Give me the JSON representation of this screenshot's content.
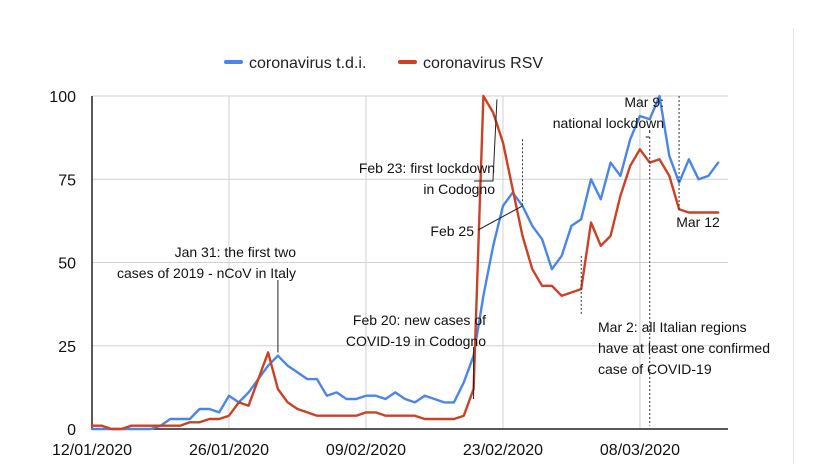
{
  "chart_data": {
    "type": "line",
    "legend_position": "top-center",
    "grid": true,
    "ylim": [
      0,
      100
    ],
    "yticks": [
      0,
      25,
      50,
      75,
      100
    ],
    "xlim": [
      "12/01/2020",
      "17/03/2020"
    ],
    "xtick_labels": [
      "12/01/2020",
      "26/01/2020",
      "09/02/2020",
      "23/02/2020",
      "08/03/2020"
    ],
    "x": [
      "12/01/2020",
      "13/01/2020",
      "14/01/2020",
      "15/01/2020",
      "16/01/2020",
      "17/01/2020",
      "18/01/2020",
      "19/01/2020",
      "20/01/2020",
      "21/01/2020",
      "22/01/2020",
      "23/01/2020",
      "24/01/2020",
      "25/01/2020",
      "26/01/2020",
      "27/01/2020",
      "28/01/2020",
      "29/01/2020",
      "30/01/2020",
      "31/01/2020",
      "01/02/2020",
      "02/02/2020",
      "03/02/2020",
      "04/02/2020",
      "05/02/2020",
      "06/02/2020",
      "07/02/2020",
      "08/02/2020",
      "09/02/2020",
      "10/02/2020",
      "11/02/2020",
      "12/02/2020",
      "13/02/2020",
      "14/02/2020",
      "15/02/2020",
      "16/02/2020",
      "17/02/2020",
      "18/02/2020",
      "19/02/2020",
      "20/02/2020",
      "21/02/2020",
      "22/02/2020",
      "23/02/2020",
      "24/02/2020",
      "25/02/2020",
      "26/02/2020",
      "27/02/2020",
      "28/02/2020",
      "29/02/2020",
      "01/03/2020",
      "02/03/2020",
      "03/03/2020",
      "04/03/2020",
      "05/03/2020",
      "06/03/2020",
      "07/03/2020",
      "08/03/2020",
      "09/03/2020",
      "10/03/2020",
      "11/03/2020",
      "12/03/2020",
      "13/03/2020",
      "14/03/2020",
      "15/03/2020",
      "16/03/2020"
    ],
    "series": [
      {
        "name": "coronavirus t.d.i.",
        "color": "#4a86e8",
        "values": [
          0,
          0,
          0,
          0,
          0,
          0,
          0,
          1,
          3,
          3,
          3,
          6,
          6,
          5,
          10,
          8,
          11,
          15,
          19,
          22,
          19,
          17,
          15,
          15,
          10,
          11,
          9,
          9,
          10,
          10,
          9,
          11,
          9,
          8,
          10,
          9,
          8,
          8,
          14,
          22,
          40,
          55,
          67,
          71,
          67,
          61,
          57,
          48,
          52,
          61,
          63,
          75,
          69,
          80,
          76,
          87,
          94,
          93,
          100,
          82,
          74,
          81,
          75,
          76,
          80
        ],
        "start_index": 0
      },
      {
        "name": "coronavirus RSV",
        "color": "#cc4125",
        "values": [
          1,
          1,
          0,
          0,
          1,
          1,
          1,
          1,
          1,
          1,
          2,
          2,
          3,
          3,
          4,
          8,
          7,
          15,
          23,
          12,
          8,
          6,
          5,
          4,
          4,
          4,
          4,
          4,
          5,
          5,
          4,
          4,
          4,
          4,
          3,
          3,
          3,
          3,
          4,
          12,
          100,
          95,
          86,
          72,
          58,
          48,
          43,
          43,
          40,
          41,
          42,
          62,
          55,
          58,
          70,
          79,
          84,
          80,
          81,
          76,
          66,
          65,
          65,
          65,
          65
        ],
        "start_index": 0
      }
    ],
    "annotations": [
      {
        "lines": [
          "Jan 31: the first two",
          "cases of 2019 - nCoV in Italy"
        ],
        "date": "31/01/2020"
      },
      {
        "lines": [
          "Feb 20: new cases of",
          "COVID-19 in Codogno"
        ],
        "date": "20/02/2020"
      },
      {
        "lines": [
          "Feb 23: first lockdown",
          "in Codogno"
        ],
        "date": "23/02/2020"
      },
      {
        "lines": [
          "Feb 25"
        ],
        "date": "25/02/2020"
      },
      {
        "lines": [
          "Mar 2: all Italian regions",
          "have at least one confirmed",
          "case of COVID-19"
        ],
        "date": "02/03/2020"
      },
      {
        "lines": [
          "Mar 9:",
          "national lockdown"
        ],
        "date": "09/03/2020"
      },
      {
        "lines": [
          "Mar 12"
        ],
        "date": "12/03/2020"
      }
    ]
  }
}
